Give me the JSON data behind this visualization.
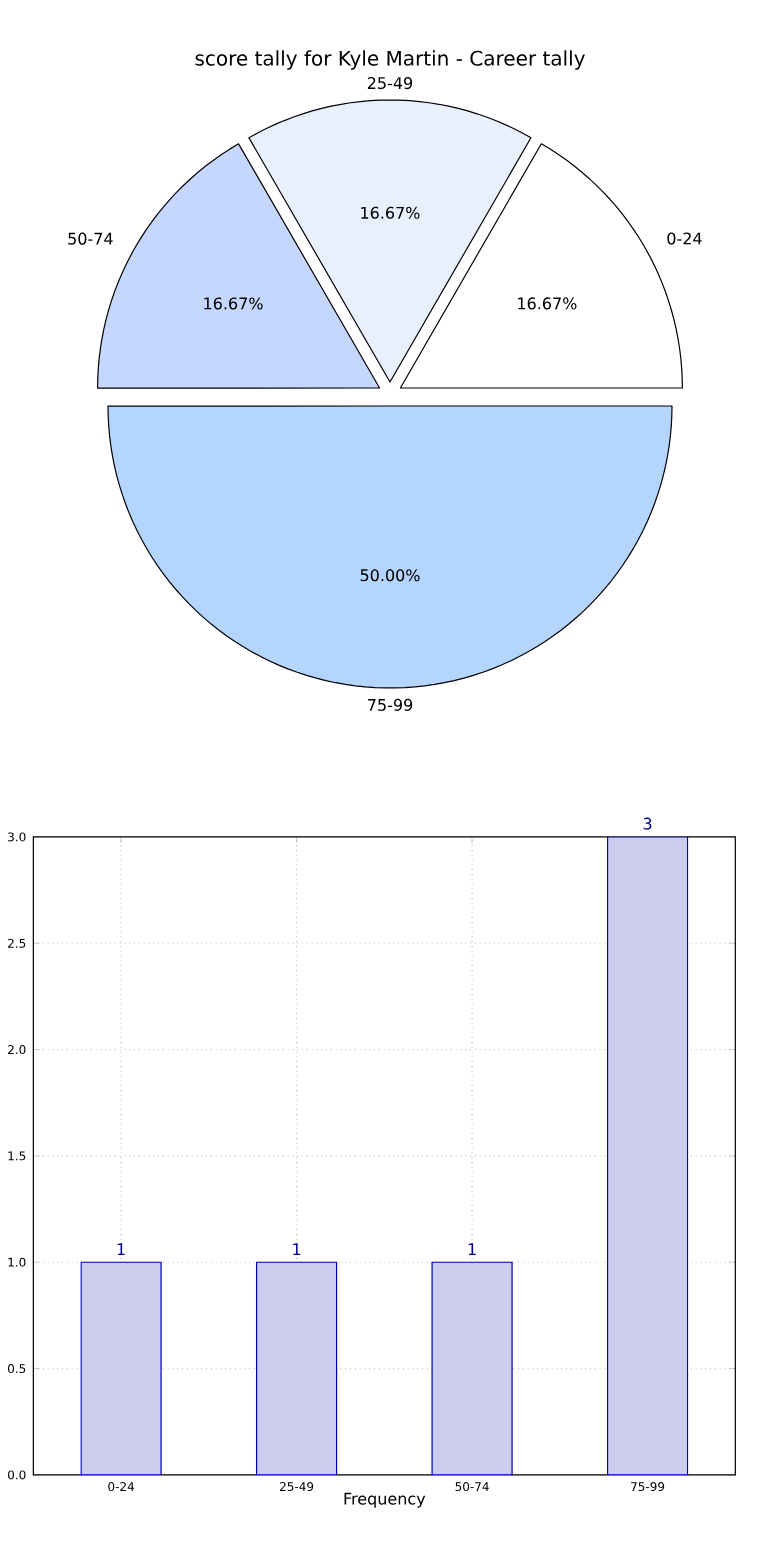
{
  "chart_data": [
    {
      "type": "pie",
      "title": "score tally for Kyle Martin - Career tally",
      "categories": [
        "0-24",
        "25-49",
        "50-74",
        "75-99"
      ],
      "values": [
        16.67,
        16.67,
        16.67,
        50
      ],
      "colors": [
        "#ffffff",
        "#e8f0ff",
        "#c6d7ff",
        "#b4d5ff"
      ],
      "value_labels": [
        "16.67%",
        "16.67%",
        "16.67%",
        "50.00%"
      ]
    },
    {
      "type": "bar",
      "categories": [
        "0-24",
        "25-49",
        "50-74",
        "75-99"
      ],
      "values": [
        1,
        1,
        1,
        3
      ],
      "color": "#ccccee",
      "xlabel": "Frequency",
      "ylim": [
        0,
        3
      ],
      "yticks": [
        {
          "value": 0,
          "label": "0.0"
        },
        {
          "value": 0.5,
          "label": "0.5"
        },
        {
          "value": 1,
          "label": "1.0"
        },
        {
          "value": 1.5,
          "label": "1.5"
        },
        {
          "value": 2,
          "label": "2.0"
        },
        {
          "value": 2.5,
          "label": "2.5"
        },
        {
          "value": 3,
          "label": "3.0"
        }
      ],
      "grid": true,
      "data_labels": true
    }
  ]
}
